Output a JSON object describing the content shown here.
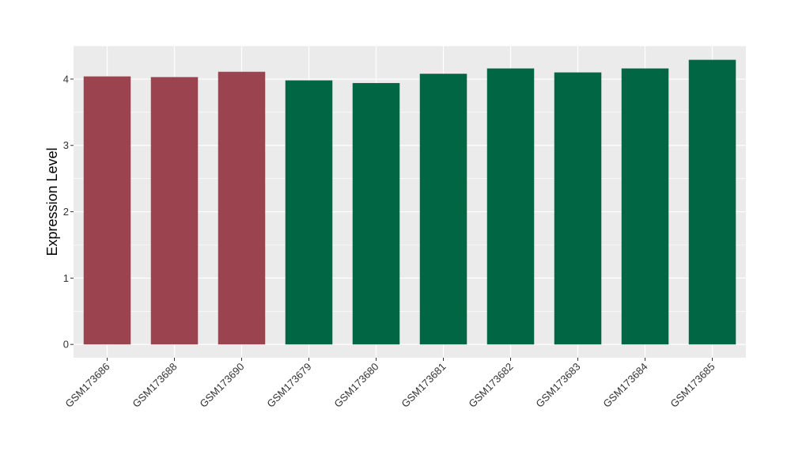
{
  "chart_data": {
    "type": "bar",
    "title": "",
    "xlabel": "",
    "ylabel": "Expression Level",
    "ylim": [
      -0.2,
      4.5
    ],
    "yticks": [
      0,
      1,
      2,
      3,
      4
    ],
    "grid": true,
    "categories": [
      "GSM173686",
      "GSM173688",
      "GSM173690",
      "GSM173679",
      "GSM173680",
      "GSM173681",
      "GSM173682",
      "GSM173683",
      "GSM173684",
      "GSM173685"
    ],
    "values": [
      4.04,
      4.03,
      4.11,
      3.98,
      3.94,
      4.08,
      4.16,
      4.1,
      4.16,
      4.29
    ],
    "group_colors": [
      "#9b4450",
      "#9b4450",
      "#9b4450",
      "#006643",
      "#006643",
      "#006643",
      "#006643",
      "#006643",
      "#006643",
      "#006643"
    ],
    "panel_background": "#ebebeb",
    "grid_color": "#ffffff"
  }
}
